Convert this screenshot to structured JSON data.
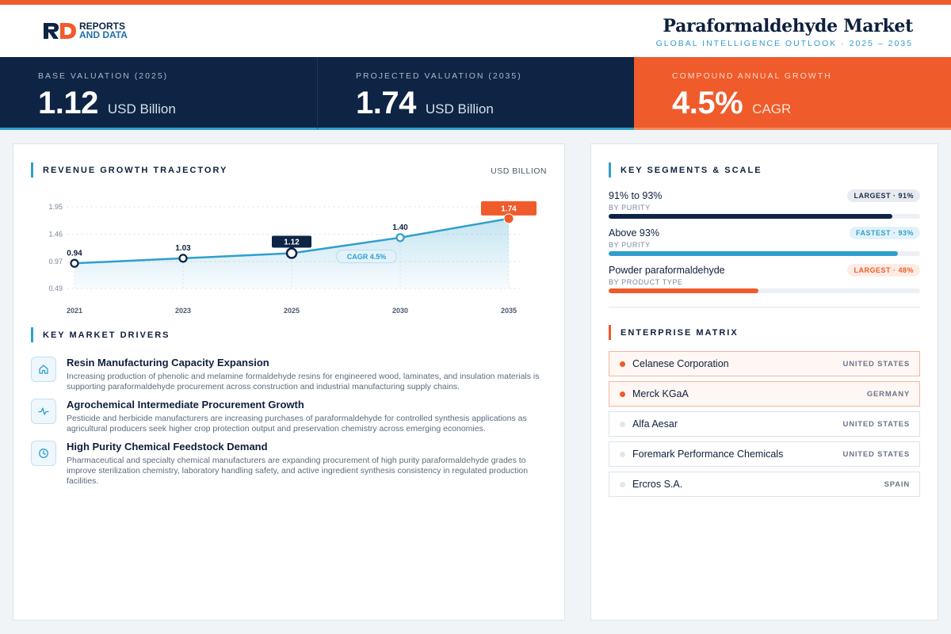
{
  "brand": {
    "line1": "REPORTS",
    "line2": "AND DATA"
  },
  "header": {
    "title": "Paraformaldehyde Market",
    "subtitle": "GLOBAL INTELLIGENCE OUTLOOK  ·  2025 – 2035"
  },
  "stats": [
    {
      "label": "BASE VALUATION (2025)",
      "value": "1.12",
      "unit": "USD Billion"
    },
    {
      "label": "PROJECTED VALUATION (2035)",
      "value": "1.74",
      "unit": "USD Billion"
    },
    {
      "label": "COMPOUND ANNUAL GROWTH",
      "value": "4.5%",
      "unit": "CAGR"
    }
  ],
  "chart_section": {
    "title": "REVENUE GROWTH TRAJECTORY",
    "unit_note": "USD BILLION",
    "cagr_label": "CAGR 4.5%"
  },
  "chart_data": {
    "type": "line",
    "title": "REVENUE GROWTH TRAJECTORY",
    "categories": [
      "2021",
      "2023",
      "2025",
      "2030",
      "2035"
    ],
    "values": [
      0.94,
      1.03,
      1.12,
      1.4,
      1.74
    ],
    "value_labels": [
      "0.94",
      "1.03",
      "1.12",
      "1.40",
      "1.74"
    ],
    "y_ticks": [
      "1.95",
      "1.46",
      "0.97",
      "0.49"
    ],
    "ylim": [
      0.49,
      1.95
    ],
    "grid": true,
    "area_fill": true,
    "highlight": {
      "base_index": 2,
      "projected_index": 4
    },
    "colors": {
      "line": "#2f9fcd",
      "base": "#0e2444",
      "projected": "#ef5b2b"
    }
  },
  "drivers_section": {
    "title": "KEY MARKET DRIVERS",
    "items": [
      {
        "icon": "home-icon",
        "title": "Resin Manufacturing Capacity Expansion",
        "desc": "Increasing production of phenolic and melamine formaldehyde resins for engineered wood, laminates, and insulation materials is supporting paraformaldehyde procurement across construction and industrial manufacturing supply chains."
      },
      {
        "icon": "activity-icon",
        "title": "Agrochemical Intermediate Procurement Growth",
        "desc": "Pesticide and herbicide manufacturers are increasing purchases of paraformaldehyde for controlled synthesis applications as agricultural producers seek higher crop protection output and preservation chemistry across emerging economies."
      },
      {
        "icon": "clock-icon",
        "title": "High Purity Chemical Feedstock Demand",
        "desc": "Pharmaceutical and specialty chemical manufacturers are expanding procurement of high purity paraformaldehyde grades to improve sterilization chemistry, laboratory handling safety, and active ingredient synthesis consistency in regulated production facilities."
      }
    ]
  },
  "segments_section": {
    "title": "KEY SEGMENTS & SCALE",
    "items": [
      {
        "name": "91% to 93%",
        "category": "BY PURITY",
        "badge": "LARGEST · 91%",
        "share": 0.91,
        "color": "#0e2444"
      },
      {
        "name": "Above 93%",
        "category": "BY PURITY",
        "badge": "FASTEST · 93%",
        "share": 0.93,
        "color": "#2f9fcd"
      },
      {
        "name": "Powder paraformaldehyde",
        "category": "BY PRODUCT TYPE",
        "badge": "LARGEST · 48%",
        "share": 0.48,
        "color": "#ef5b2b"
      }
    ]
  },
  "matrix_section": {
    "title": "ENTERPRISE MATRIX",
    "items": [
      {
        "name": "Celanese Corporation",
        "country": "UNITED STATES",
        "highlight": true
      },
      {
        "name": "Merck KGaA",
        "country": "GERMANY",
        "highlight": true
      },
      {
        "name": "Alfa Aesar",
        "country": "UNITED STATES",
        "highlight": false
      },
      {
        "name": "Foremark Performance Chemicals",
        "country": "UNITED STATES",
        "highlight": false
      },
      {
        "name": "Ercros S.A.",
        "country": "SPAIN",
        "highlight": false
      }
    ]
  },
  "colors": {
    "navy": "#0e2444",
    "accent_blue": "#2f9fcd",
    "accent_orange": "#ef5b2b"
  }
}
